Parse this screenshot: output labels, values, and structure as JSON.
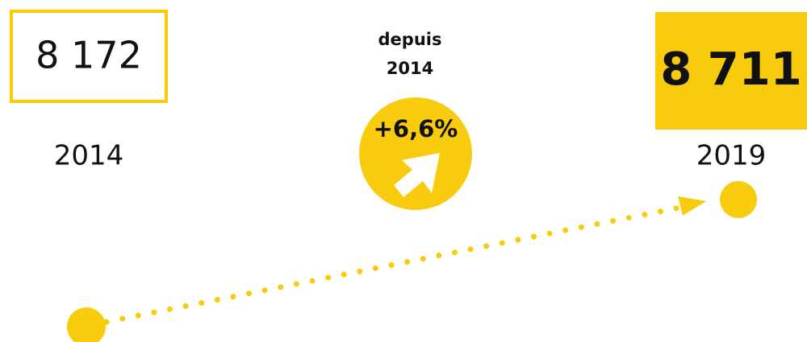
{
  "start": {
    "value": "8 172",
    "year": "2014"
  },
  "change": {
    "caption": [
      "depuis",
      "2014"
    ],
    "value": "+6,6%"
  },
  "end": {
    "value": "8 711",
    "year": "2019"
  }
}
